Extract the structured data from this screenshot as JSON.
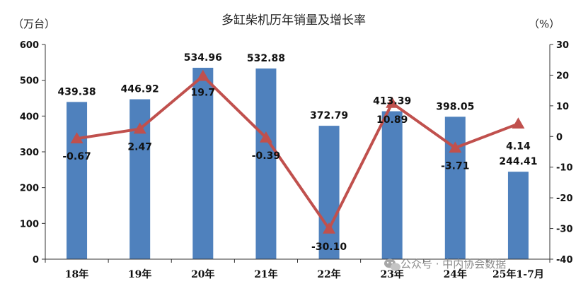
{
  "chart_data": {
    "type": "bar",
    "title": "多缸柴机历年销量及增长率",
    "ylabel_left": "（万台）",
    "ylabel_right": "（%）",
    "categories": [
      "18年",
      "19年",
      "20年",
      "21年",
      "22年",
      "23年",
      "24年",
      "25年1-7月"
    ],
    "series": [
      {
        "type": "bar",
        "axis": "left",
        "color": "#4f81bd",
        "values": [
          439.38,
          446.92,
          534.96,
          532.88,
          372.79,
          413.39,
          398.05,
          244.41
        ]
      },
      {
        "type": "line",
        "axis": "right",
        "color": "#c0504d",
        "marker": "triangle",
        "values": [
          -0.67,
          2.47,
          19.7,
          -0.39,
          -30.1,
          10.89,
          -3.71,
          4.14
        ]
      }
    ],
    "bar_labels": [
      "439.38",
      "446.92",
      "534.96",
      "532.88",
      "372.79",
      "413.39",
      "398.05",
      "244.41"
    ],
    "line_labels": [
      "-0.67",
      "2.47",
      "19.7",
      "-0.39",
      "-30.10",
      "10.89",
      "-3.71",
      "4.14"
    ],
    "ylim_left": [
      0,
      600
    ],
    "yticks_left": [
      0,
      100,
      200,
      300,
      400,
      500,
      600
    ],
    "ylim_right": [
      -40,
      30
    ],
    "yticks_right": [
      -40,
      -30,
      -20,
      -10,
      0,
      10,
      20,
      30
    ],
    "grid": false,
    "legend": "none"
  },
  "watermark": {
    "icon": "wechat-icon",
    "text": "公众号 · 中内协会数据"
  }
}
